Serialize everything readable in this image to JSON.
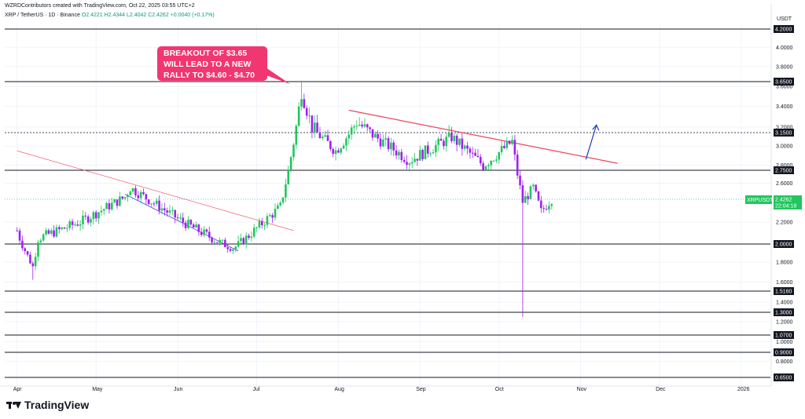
{
  "header": {
    "attribution": "WZRDContributors created with TradingView.com, Oct 22, 2025 03:55 UTC+2",
    "symbol": "XRP / TetherUS · 1D · Binance",
    "ohlc": "O2.4221  H2.4344  L2.4042  C2.4262  +0.0040 (+0.17%)"
  },
  "callout": {
    "line1": "BREAKOUT OF $3.65",
    "line2": "WILL LEAD TO A NEW",
    "line3": "RALLY TO $4.60 - $4.70"
  },
  "price_tag": {
    "symbol": "XRPUSDT",
    "price": "2.4262",
    "countdown": "22:04:18"
  },
  "axis": {
    "currency": "USDT"
  },
  "brand": "TradingView",
  "colors": {
    "up": "#26a69a",
    "up_strong": "#22c55e",
    "down": "#a020f0",
    "trend_red": "#ef4459",
    "trend_blue": "#3f3fcf",
    "arrow": "#1f3fb0",
    "callout": "#f23671"
  },
  "chart_data": {
    "type": "candlestick",
    "y_scale": "log",
    "ylim": [
      0.62,
      4.4
    ],
    "y_ticks": [
      {
        "v": 4.2,
        "label": "4.2000",
        "box": true
      },
      {
        "v": 4.0,
        "label": "4.0000"
      },
      {
        "v": 3.8,
        "label": "3.8000"
      },
      {
        "v": 3.65,
        "label": "3.6500",
        "box": true
      },
      {
        "v": 3.6,
        "label": "3.6000"
      },
      {
        "v": 3.4,
        "label": "3.4000"
      },
      {
        "v": 3.2,
        "label": "3.2000"
      },
      {
        "v": 3.15,
        "label": "3.1500",
        "box": true
      },
      {
        "v": 3.0,
        "label": "3.0000"
      },
      {
        "v": 2.8,
        "label": "2.8000"
      },
      {
        "v": 2.75,
        "label": "2.7500",
        "box": true
      },
      {
        "v": 2.6,
        "label": "2.6000"
      },
      {
        "v": 2.2,
        "label": "2.2000"
      },
      {
        "v": 2.0,
        "label": "2.0000",
        "box": true
      },
      {
        "v": 1.8,
        "label": "1.8000"
      },
      {
        "v": 1.6,
        "label": "1.6000"
      },
      {
        "v": 1.516,
        "label": "1.5160",
        "box": true
      },
      {
        "v": 1.4,
        "label": "1.4000"
      },
      {
        "v": 1.3,
        "label": "1.3000",
        "box": true
      },
      {
        "v": 1.2,
        "label": "1.2000"
      },
      {
        "v": 1.07,
        "label": "1.0700",
        "box": true
      },
      {
        "v": 1.0,
        "label": "1.0000"
      },
      {
        "v": 0.9,
        "label": "0.9000",
        "box": true
      },
      {
        "v": 0.8,
        "label": "0.8000"
      },
      {
        "v": 0.65,
        "label": "0.6500",
        "box": true
      }
    ],
    "x_months": [
      "Apr",
      "May",
      "Jun",
      "Jul",
      "Aug",
      "Sep",
      "Oct",
      "Nov",
      "Dec",
      "2026"
    ],
    "horizontal_levels": [
      {
        "v": 4.2,
        "style": "solid"
      },
      {
        "v": 3.65,
        "style": "solid"
      },
      {
        "v": 3.15,
        "style": "dotted"
      },
      {
        "v": 2.75,
        "style": "solid"
      },
      {
        "v": 2.0,
        "style": "solid"
      },
      {
        "v": 1.516,
        "style": "solid"
      },
      {
        "v": 1.3,
        "style": "solid"
      },
      {
        "v": 1.07,
        "style": "solid"
      },
      {
        "v": 0.9,
        "style": "solid"
      },
      {
        "v": 0.65,
        "style": "solid"
      }
    ],
    "trendlines": [
      {
        "color": "trend_red",
        "from": [
          "Apr 1",
          2.95
        ],
        "to": [
          "Jul 15",
          2.12
        ],
        "width": 0.6
      },
      {
        "color": "trend_blue",
        "from": [
          "May 12",
          2.48
        ],
        "to": [
          "Jun 24",
          1.92
        ],
        "width": 0.8
      },
      {
        "color": "trend_red",
        "from": [
          "Aug 5",
          3.36
        ],
        "to": [
          "Nov 15",
          2.82
        ],
        "width": 1.2
      }
    ],
    "projection_arrow": {
      "from": [
        "Nov 3",
        2.86
      ],
      "to": [
        "Nov 7",
        3.22
      ]
    },
    "key_points": [
      [
        "Apr 1",
        2.12
      ],
      [
        "Apr 7",
        1.75
      ],
      [
        "Apr 9",
        2.05
      ],
      [
        "Apr 25",
        2.2
      ],
      [
        "May 12",
        2.45
      ],
      [
        "May 14",
        2.55
      ],
      [
        "Jun 3",
        2.2
      ],
      [
        "Jun 22",
        1.95
      ],
      [
        "Jul 10",
        2.35
      ],
      [
        "Jul 18",
        3.55
      ],
      [
        "Jul 22",
        3.2
      ],
      [
        "Jul 31",
        2.95
      ],
      [
        "Aug 8",
        3.25
      ],
      [
        "Aug 28",
        2.85
      ],
      [
        "Sep 13",
        3.1
      ],
      [
        "Sep 25",
        2.8
      ],
      [
        "Oct 6",
        3.05
      ],
      [
        "Oct 10",
        2.4
      ],
      [
        "Oct 14",
        2.55
      ],
      [
        "Oct 17",
        2.3
      ],
      [
        "Oct 21",
        2.43
      ]
    ]
  }
}
